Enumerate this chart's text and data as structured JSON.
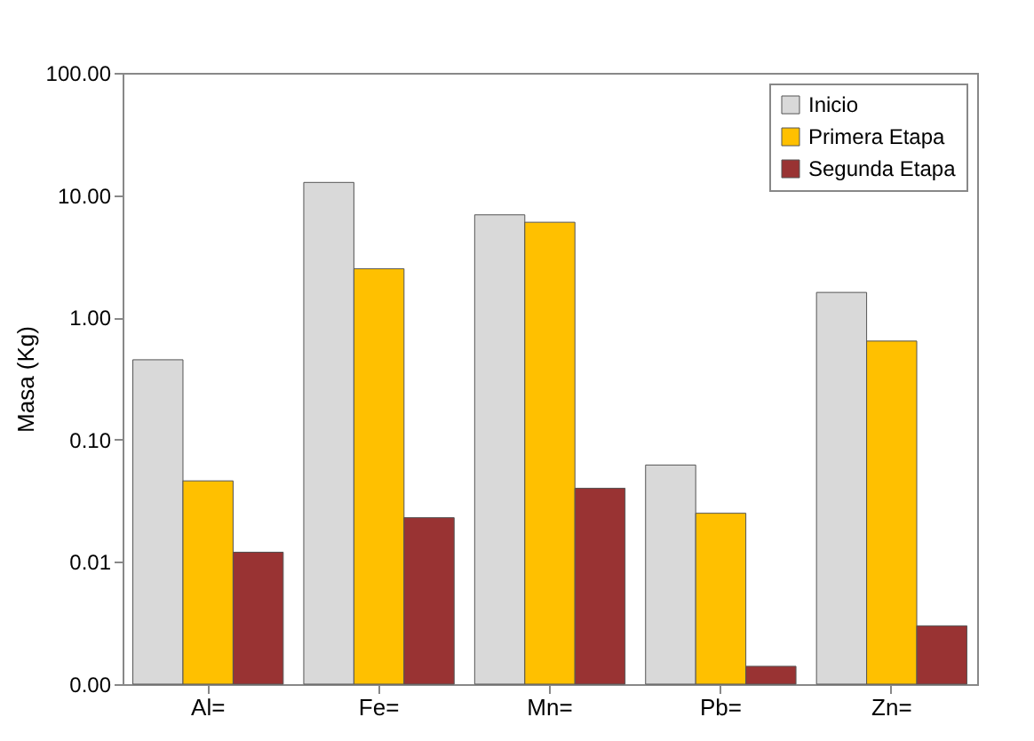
{
  "chart_data": {
    "type": "bar",
    "ylabel": "Masa (Kg)",
    "categories": [
      "Al=",
      "Fe=",
      "Mn=",
      "Pb=",
      "Zn="
    ],
    "series": [
      {
        "name": "Inicio",
        "color": "#d9d9d9",
        "values": [
          0.45,
          12.7,
          6.9,
          0.062,
          1.6
        ]
      },
      {
        "name": "Primera Etapa",
        "color": "#ffc000",
        "values": [
          0.046,
          2.5,
          6.0,
          0.025,
          0.64
        ]
      },
      {
        "name": "Segunda Etapa",
        "color": "#993333",
        "values": [
          0.012,
          0.023,
          0.04,
          0.0014,
          0.003
        ]
      }
    ],
    "log": "y",
    "ylim": [
      0.001,
      100
    ],
    "yticks": [
      {
        "value": 0.001,
        "label": "0.00"
      },
      0.01,
      {
        "value": 0.1,
        "label": "0.10"
      },
      {
        "value": 1,
        "label": "1.00"
      },
      {
        "value": 10,
        "label": "10.00"
      },
      {
        "value": 100,
        "label": "100.00"
      }
    ],
    "grid": false,
    "legend": "top right"
  }
}
